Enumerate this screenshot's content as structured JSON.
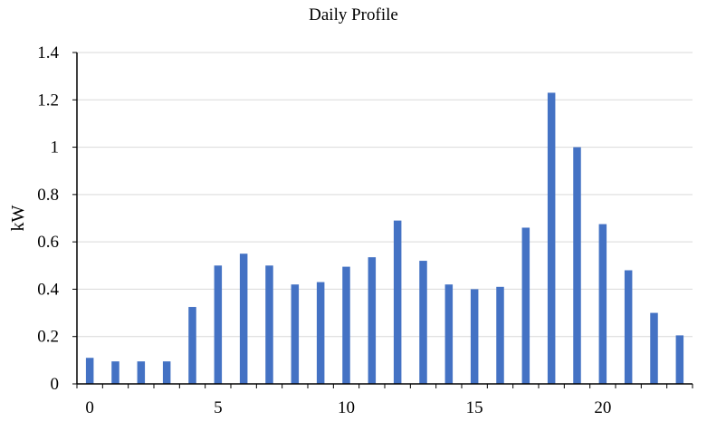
{
  "chart_data": {
    "type": "bar",
    "title": "Daily Profile",
    "xlabel": "",
    "ylabel": "kW",
    "categories": [
      0,
      1,
      2,
      3,
      4,
      5,
      6,
      7,
      8,
      9,
      10,
      11,
      12,
      13,
      14,
      15,
      16,
      17,
      18,
      19,
      20,
      21,
      22,
      23
    ],
    "values": [
      0.11,
      0.095,
      0.095,
      0.095,
      0.325,
      0.5,
      0.55,
      0.5,
      0.42,
      0.43,
      0.495,
      0.535,
      0.69,
      0.52,
      0.42,
      0.4,
      0.41,
      0.66,
      1.23,
      1.0,
      0.675,
      0.48,
      0.3,
      0.205
    ],
    "ylim": [
      0,
      1.4
    ],
    "yticks": [
      0,
      0.2,
      0.4,
      0.6,
      0.8,
      1,
      1.2,
      1.4
    ],
    "ytick_labels": [
      "0",
      "0.2",
      "0.4",
      "0.6",
      "0.8",
      "1",
      "1.2",
      "1.4"
    ],
    "xticks": [
      0,
      5,
      10,
      15,
      20
    ],
    "xtick_labels": [
      "0",
      "5",
      "10",
      "15",
      "20"
    ],
    "grid": true,
    "bar_color": "#4472C4",
    "grid_color": "#d9d9d9"
  }
}
